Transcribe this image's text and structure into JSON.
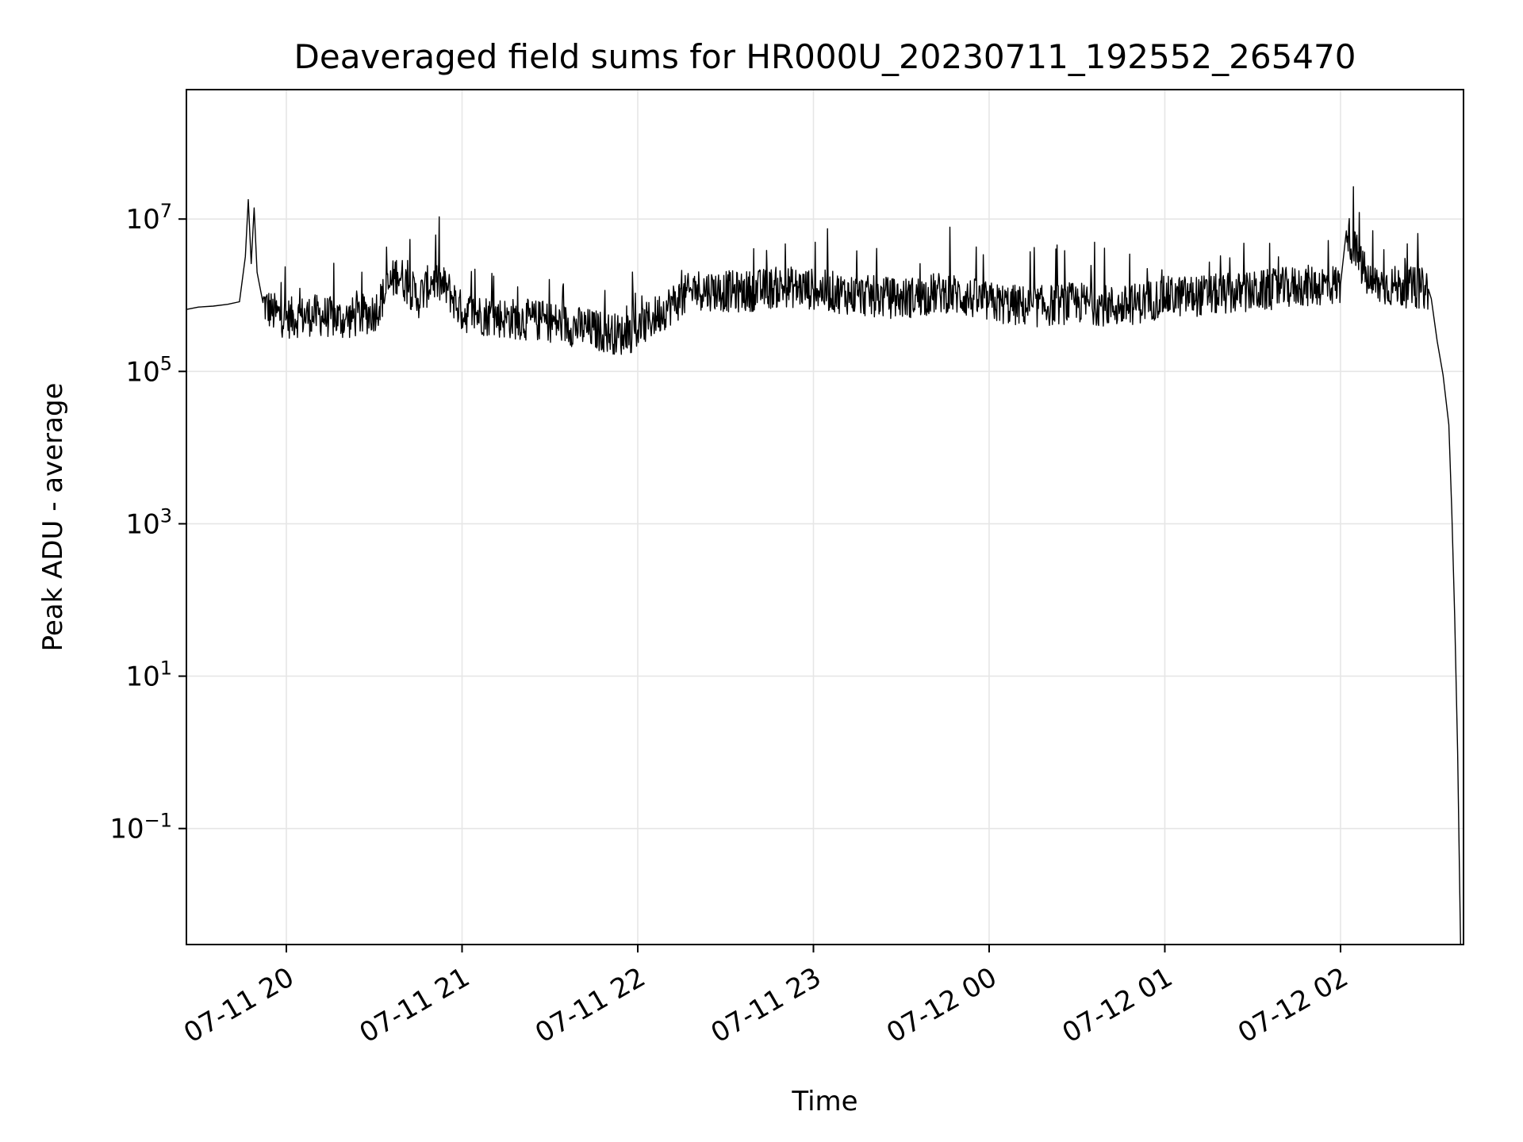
{
  "chart_data": {
    "type": "line",
    "title": "Deaveraged field sums for HR000U_20230711_192552_265470",
    "xlabel": "Time",
    "ylabel": "Peak ADU - average",
    "yscale": "log",
    "ylim": [
      0.003,
      500000000
    ],
    "xlim": [
      "2023-07-11 19:25:52",
      "2023-07-12 02:42:00"
    ],
    "grid": true,
    "line_color": "#000000",
    "grid_color": "#e6e6e6",
    "x_ticks": [
      {
        "value": "2023-07-11 20:00",
        "label": "07-11 20"
      },
      {
        "value": "2023-07-11 21:00",
        "label": "07-11 21"
      },
      {
        "value": "2023-07-11 22:00",
        "label": "07-11 22"
      },
      {
        "value": "2023-07-11 23:00",
        "label": "07-11 23"
      },
      {
        "value": "2023-07-12 00:00",
        "label": "07-12 00"
      },
      {
        "value": "2023-07-12 01:00",
        "label": "07-12 01"
      },
      {
        "value": "2023-07-12 02:00",
        "label": "07-12 02"
      }
    ],
    "y_ticks": [
      {
        "value": 10000000,
        "base": "10",
        "exp": "7"
      },
      {
        "value": 100000,
        "base": "10",
        "exp": "5"
      },
      {
        "value": 1000,
        "base": "10",
        "exp": "3"
      },
      {
        "value": 10,
        "base": "10",
        "exp": "1"
      },
      {
        "value": 0.1,
        "base": "10",
        "exp": "−1"
      }
    ],
    "series": [
      {
        "x": [
          "2023-07-11 19:25:52",
          "2023-07-11 19:30",
          "2023-07-11 19:35",
          "2023-07-11 19:40",
          "2023-07-11 19:44",
          "2023-07-11 19:46",
          "2023-07-11 19:47",
          "2023-07-11 19:48",
          "2023-07-11 19:49",
          "2023-07-11 19:50",
          "2023-07-11 19:52",
          "2023-07-11 19:55",
          "2023-07-11 20:00",
          "2023-07-11 20:10",
          "2023-07-11 20:20",
          "2023-07-11 20:30",
          "2023-07-11 20:38",
          "2023-07-11 20:45",
          "2023-07-11 20:50",
          "2023-07-11 20:55",
          "2023-07-11 21:00",
          "2023-07-11 21:15",
          "2023-07-11 21:30",
          "2023-07-11 21:45",
          "2023-07-11 21:55",
          "2023-07-11 22:00",
          "2023-07-11 22:10",
          "2023-07-11 22:20",
          "2023-07-11 22:35",
          "2023-07-11 22:50",
          "2023-07-11 23:00",
          "2023-07-11 23:15",
          "2023-07-11 23:30",
          "2023-07-11 23:45",
          "2023-07-12 00:00",
          "2023-07-12 00:15",
          "2023-07-12 00:30",
          "2023-07-12 00:45",
          "2023-07-12 01:00",
          "2023-07-12 01:15",
          "2023-07-12 01:30",
          "2023-07-12 01:45",
          "2023-07-12 02:00",
          "2023-07-12 02:02",
          "2023-07-12 02:10",
          "2023-07-12 02:20",
          "2023-07-12 02:30",
          "2023-07-12 02:31",
          "2023-07-12 02:33",
          "2023-07-12 02:35",
          "2023-07-12 02:37",
          "2023-07-12 02:38",
          "2023-07-12 02:39",
          "2023-07-12 02:40",
          "2023-07-12 02:41"
        ],
        "y": [
          650000,
          700000,
          720000,
          760000,
          820000,
          3200000,
          18000000,
          2600000,
          14000000,
          2000000,
          800000,
          600000,
          500000,
          550000,
          480000,
          600000,
          2000000,
          900000,
          1600000,
          1200000,
          600000,
          500000,
          450000,
          350000,
          300000,
          350000,
          700000,
          1200000,
          1100000,
          1300000,
          1200000,
          1000000,
          900000,
          1100000,
          800000,
          700000,
          800000,
          700000,
          950000,
          1000000,
          1100000,
          1300000,
          1400000,
          7000000,
          1400000,
          1300000,
          1200000,
          900000,
          250000,
          90000,
          20000,
          1500,
          60,
          1,
          0.003
        ]
      }
    ]
  }
}
